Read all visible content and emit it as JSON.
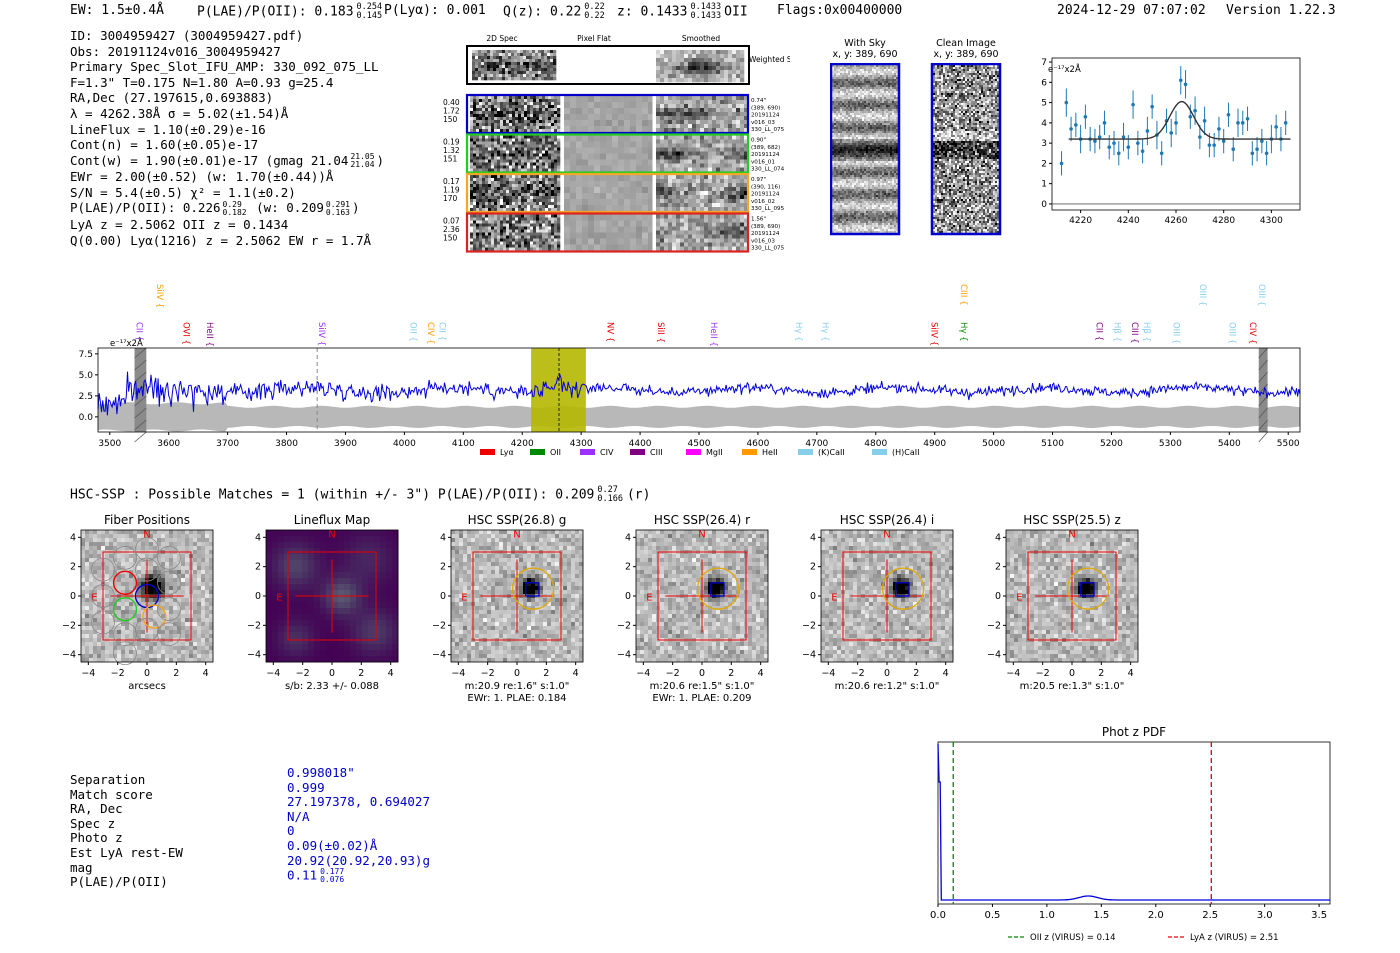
{
  "header": {
    "ew_text": "EW: 1.5±0.4Å",
    "plae_label": "P(LAE)/P(OII): 0.183",
    "plae_up": "0.254",
    "plae_dn": "0.145",
    "plya_text": "P(Lyα): 0.001",
    "qz_label": "Q(z): 0.22",
    "qz_up": "0.22",
    "qz_dn": "0.22",
    "z_label": "z: 0.1433",
    "z_up": "0.1433",
    "z_dn": "0.1433",
    "z_line": "OII",
    "flags": "Flags:0x00400000",
    "timestamp": "2024-12-29 07:07:02",
    "version": "Version 1.22.3"
  },
  "info": {
    "id": "ID: 3004959427 (3004959427.pdf)",
    "obs": "Obs: 20191124v016_3004959427",
    "primary": "Primary Spec_Slot_IFU_AMP: 330_092_075_LL",
    "params": "F=1.3\"  T=0.175  N=1.80  A=0.93  g=25.4",
    "radec": "RA,Dec (27.197615,0.693883)",
    "lambda": "λ = 4262.38Å  σ = 5.02(±1.54)Å",
    "lineflux": "LineFlux = 1.10(±0.29)e-16",
    "contn": "Cont(n) = 1.60(±0.05)e-17",
    "contw": "Cont(w) = 1.90(±0.01)e-17 (gmag 21.04",
    "contw_up": "21.05",
    "contw_dn": "21.04",
    "ewr": "EWr = 2.00(±0.52) (w: 1.70(±0.44))Å",
    "sn": "S/N = 5.4(±0.5)  χ² = 1.1(±0.2)",
    "plae": "P(LAE)/P(OII): 0.226",
    "plae_up": "0.29",
    "plae_dn": "0.182",
    "plae_w": "(w: 0.209",
    "plae_w_up": "0.291",
    "plae_w_dn": "0.163",
    "lya": "LyA z = 2.5062  OII z = 0.1434",
    "q": "Q(0.00) Lyα(1216) z = 2.5062  EW r = 1.7Å"
  },
  "spec2d": {
    "col_titles": [
      "2D Spec",
      "Pixel Flat",
      "Smoothed"
    ],
    "weighted_label": "Weighted Sum",
    "rows": [
      {
        "left": [
          "0.40",
          "1.72",
          "150"
        ],
        "right": [
          "0.74\"",
          "(389, 690)",
          "20191124",
          "v016_03",
          "330_LL_075"
        ],
        "color": "#0000cc"
      },
      {
        "left": [
          "0.19",
          "1.32",
          "151"
        ],
        "right": [
          "0.90\"",
          "(389, 682)",
          "20191124",
          "v016_01",
          "330_LL_074"
        ],
        "color": "#22cc22"
      },
      {
        "left": [
          "0.17",
          "1.19",
          "170"
        ],
        "right": [
          "0.97\"",
          "(390, 116)",
          "20191124",
          "v016_02",
          "330_LL_095"
        ],
        "color": "#f5a623"
      },
      {
        "left": [
          "0.07",
          "2.36",
          "150"
        ],
        "right": [
          "1.56\"",
          "(389, 690)",
          "20191124",
          "v016_03",
          "330_LL_075"
        ],
        "color": "#dd2222"
      }
    ]
  },
  "sky": {
    "title": "With Sky",
    "coords": "x, y: 389, 690"
  },
  "clean": {
    "title": "Clean Image",
    "coords": "x, y: 389, 690"
  },
  "zoom_plot": {
    "unit_label": "e⁻¹⁷x2Å"
  },
  "spectrum": {
    "unit_label": "e⁻¹⁷x2Å"
  },
  "hsc": {
    "text": "HSC-SSP : Possible Matches = 1 (within +/- 3\")  P(LAE)/P(OII): 0.209",
    "up": "0.27",
    "dn": "0.166",
    "band": "(r)"
  },
  "panels": [
    {
      "title": "Fiber Positions",
      "caption1": "arcsecs",
      "caption2": "",
      "kind": "fiber"
    },
    {
      "title": "Lineflux Map",
      "caption1": "s/b: 2.33 +/- 0.088",
      "caption2": "",
      "kind": "flux"
    },
    {
      "title": "HSC SSP(26.8) g",
      "caption1": "m:20.9  re:1.6\"  s:1.0\"",
      "caption2": "EWr: 1. PLAE: 0.184",
      "kind": "img"
    },
    {
      "title": "HSC SSP(26.4) r",
      "caption1": "m:20.6  re:1.5\"  s:1.0\"",
      "caption2": "EWr: 1. PLAE: 0.209",
      "kind": "img"
    },
    {
      "title": "HSC SSP(26.4) i",
      "caption1": "m:20.6  re:1.2\"  s:1.0\"",
      "caption2": "",
      "kind": "img"
    },
    {
      "title": "HSC SSP(25.5) z",
      "caption1": "m:20.5  re:1.3\"  s:1.0\"",
      "caption2": "",
      "kind": "img"
    }
  ],
  "panel_labels": {
    "north": "N",
    "east": "E"
  },
  "match": {
    "labels": [
      "Separation",
      "Match score",
      "RA, Dec",
      "Spec z",
      "Photo z",
      "Est LyA rest-EW",
      "mag",
      "P(LAE)/P(OII)"
    ],
    "values": [
      "0.998018\"",
      "0.999",
      "27.197378, 0.694027",
      "N/A",
      "0",
      "0.09(±0.02)Å",
      "20.92(20.92,20.93)g",
      "0.11"
    ],
    "plae_up": "0.177",
    "plae_dn": "0.076"
  },
  "chart_data": [
    {
      "type": "scatter",
      "id": "zoom",
      "title": "",
      "xlabel": "",
      "ylabel": "",
      "xlim": [
        4208,
        4312
      ],
      "ylim": [
        -0.3,
        7.2
      ],
      "xticks": [
        4220,
        4240,
        4260,
        4280,
        4300
      ],
      "yticks": [
        0,
        1,
        2,
        3,
        4,
        5,
        6,
        7
      ],
      "points": [
        [
          4212,
          2.0,
          0.6
        ],
        [
          4214,
          5.0,
          0.7
        ],
        [
          4216,
          3.7,
          0.6
        ],
        [
          4218,
          3.9,
          0.6
        ],
        [
          4220,
          3.2,
          0.7
        ],
        [
          4222,
          4.3,
          0.6
        ],
        [
          4224,
          3.2,
          0.6
        ],
        [
          4226,
          3.1,
          0.6
        ],
        [
          4228,
          3.3,
          0.6
        ],
        [
          4230,
          4.0,
          0.6
        ],
        [
          4232,
          2.8,
          0.6
        ],
        [
          4234,
          3.0,
          0.6
        ],
        [
          4236,
          2.5,
          0.6
        ],
        [
          4238,
          3.3,
          0.7
        ],
        [
          4240,
          2.8,
          0.6
        ],
        [
          4242,
          4.9,
          0.7
        ],
        [
          4244,
          3.0,
          0.6
        ],
        [
          4246,
          2.6,
          0.6
        ],
        [
          4248,
          3.6,
          0.7
        ],
        [
          4250,
          4.8,
          0.6
        ],
        [
          4252,
          3.4,
          0.7
        ],
        [
          4254,
          2.5,
          0.6
        ],
        [
          4256,
          4.1,
          0.6
        ],
        [
          4258,
          3.5,
          0.7
        ],
        [
          4260,
          4.0,
          0.6
        ],
        [
          4262,
          6.1,
          0.7
        ],
        [
          4264,
          5.9,
          0.7
        ],
        [
          4266,
          4.3,
          0.6
        ],
        [
          4268,
          4.6,
          0.7
        ],
        [
          4270,
          3.3,
          0.6
        ],
        [
          4272,
          4.1,
          0.7
        ],
        [
          4274,
          2.9,
          0.6
        ],
        [
          4276,
          2.9,
          0.6
        ],
        [
          4278,
          3.7,
          0.6
        ],
        [
          4280,
          3.1,
          0.6
        ],
        [
          4282,
          4.4,
          0.6
        ],
        [
          4284,
          2.7,
          0.6
        ],
        [
          4286,
          4.0,
          0.7
        ],
        [
          4288,
          4.0,
          0.6
        ],
        [
          4290,
          4.2,
          0.6
        ],
        [
          4292,
          2.5,
          0.6
        ],
        [
          4294,
          2.7,
          0.6
        ],
        [
          4296,
          3.1,
          0.6
        ],
        [
          4298,
          2.5,
          0.6
        ],
        [
          4300,
          3.2,
          0.7
        ],
        [
          4302,
          3.8,
          0.6
        ],
        [
          4304,
          3.2,
          0.6
        ],
        [
          4306,
          4.0,
          0.6
        ]
      ],
      "fit": {
        "continuum": 3.2,
        "amplitude": 1.85,
        "center": 4262.4,
        "sigma": 5.0
      }
    },
    {
      "type": "line",
      "id": "spectrum",
      "title": "",
      "xlim": [
        3480,
        5520
      ],
      "ylim": [
        -1.8,
        8.2
      ],
      "xticks": [
        3500,
        3600,
        3700,
        3800,
        3900,
        4000,
        4100,
        4200,
        4300,
        4400,
        4500,
        4600,
        4700,
        4800,
        4900,
        5000,
        5100,
        5200,
        5300,
        5400,
        5500
      ],
      "yticks": [
        0.0,
        2.5,
        5.0,
        7.5
      ],
      "ytick_labels": [
        "0.0",
        "2.5",
        "5.0",
        "7.5"
      ],
      "highlight": [
        4215,
        4308
      ],
      "emission_x": 4262.4,
      "dashed_x": 3852,
      "masked": [
        [
          3542,
          3562
        ],
        [
          5450,
          5465
        ]
      ],
      "legend": [
        {
          "label": "Lyα",
          "color": "#ee0000"
        },
        {
          "label": "OII",
          "color": "#008800"
        },
        {
          "label": "CIV",
          "color": "#9b30ff"
        },
        {
          "label": "CIII",
          "color": "#800080"
        },
        {
          "label": "MgII",
          "color": "#ff00ff"
        },
        {
          "label": "HeII",
          "color": "#ff9900"
        },
        {
          "label": "(K)CaII",
          "color": "#87ceeb"
        },
        {
          "label": "(H)CaII",
          "color": "#87ceeb"
        }
      ],
      "lines": [
        {
          "label": "CII",
          "x": 3545,
          "color": "#9b30ff",
          "tier": 1
        },
        {
          "label": "SiIV",
          "x": 3580,
          "color": "#ff9900",
          "tier": 3
        },
        {
          "label": "OVI",
          "x": 3625,
          "color": "#ee0000",
          "tier": 1
        },
        {
          "label": "HeII",
          "x": 3665,
          "color": "#800080",
          "tier": 1
        },
        {
          "label": "SiIV",
          "x": 3855,
          "color": "#9b30ff",
          "tier": 1
        },
        {
          "label": "OII",
          "x": 4010,
          "color": "#87ceeb",
          "tier": 1
        },
        {
          "label": "CIV",
          "x": 4040,
          "color": "#ff9900",
          "tier": 1
        },
        {
          "label": "CII",
          "x": 4060,
          "color": "#87ceeb",
          "tier": 1
        },
        {
          "label": "NV",
          "x": 4345,
          "color": "#ee0000",
          "tier": 1
        },
        {
          "label": "SiII",
          "x": 4430,
          "color": "#ee0000",
          "tier": 1
        },
        {
          "label": "HeII",
          "x": 4520,
          "color": "#9b30ff",
          "tier": 1
        },
        {
          "label": "Hγ",
          "x": 4665,
          "color": "#87ceeb",
          "tier": 1
        },
        {
          "label": "Hγ",
          "x": 4710,
          "color": "#87ceeb",
          "tier": 1
        },
        {
          "label": "SiIV",
          "x": 4895,
          "color": "#ee0000",
          "tier": 1
        },
        {
          "label": "CIII",
          "x": 4945,
          "color": "#ff9900",
          "tier": 3
        },
        {
          "label": "Hγ",
          "x": 4945,
          "color": "#008800",
          "tier": 1
        },
        {
          "label": "CII",
          "x": 5175,
          "color": "#800080",
          "tier": 1
        },
        {
          "label": "Hβ",
          "x": 5205,
          "color": "#87ceeb",
          "tier": 1
        },
        {
          "label": "CIII",
          "x": 5235,
          "color": "#800080",
          "tier": 1
        },
        {
          "label": "Hβ",
          "x": 5255,
          "color": "#87ceeb",
          "tier": 1
        },
        {
          "label": "OIII",
          "x": 5305,
          "color": "#87ceeb",
          "tier": 1
        },
        {
          "label": "OIII",
          "x": 5350,
          "color": "#87ceeb",
          "tier": 3
        },
        {
          "label": "OIII",
          "x": 5400,
          "color": "#87ceeb",
          "tier": 1
        },
        {
          "label": "OIII",
          "x": 5450,
          "color": "#87ceeb",
          "tier": 3
        },
        {
          "label": "CIV",
          "x": 5435,
          "color": "#ee0000",
          "tier": 1
        }
      ],
      "continuum_level": 3.2,
      "noise_level": 0.35,
      "error_band": 1.2
    },
    {
      "type": "line",
      "id": "photoz",
      "title": "Phot z PDF",
      "xlim": [
        0.0,
        3.6
      ],
      "xticks": [
        0.0,
        0.5,
        1.0,
        1.5,
        2.0,
        2.5,
        3.0,
        3.5
      ],
      "xtick_labels": [
        "0.0",
        "0.5",
        "1.0",
        "1.5",
        "2.0",
        "2.5",
        "3.0",
        "3.5"
      ],
      "oii_z": 0.14,
      "lya_z": 2.51,
      "legend": [
        {
          "label": "OII z (VIRUS) = 0.14",
          "color": "#008800"
        },
        {
          "label": "LyA z (VIRUS) = 2.51",
          "color": "#ee0000"
        }
      ]
    }
  ]
}
